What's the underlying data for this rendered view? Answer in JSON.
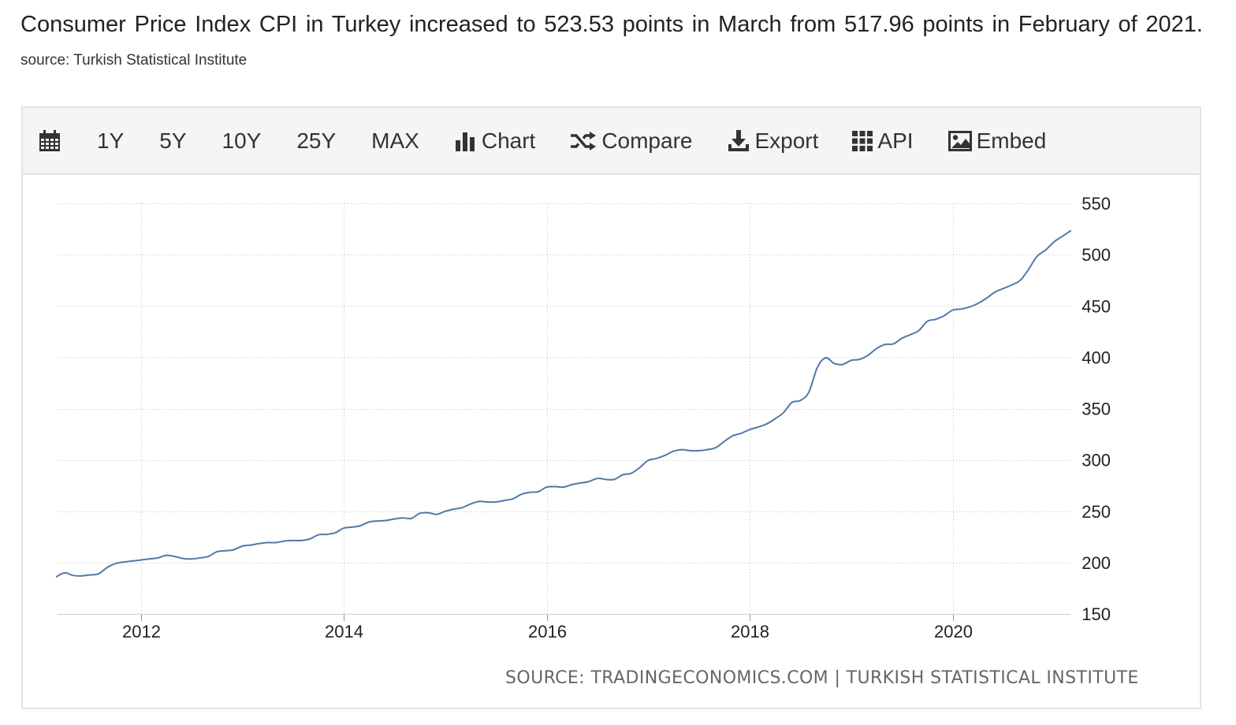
{
  "headline": {
    "text": "Consumer Price Index CPI in Turkey increased to 523.53 points in March from 517.96 points in February of 2021.",
    "source": "source: Turkish Statistical Institute"
  },
  "toolbar": {
    "range_1y": "1Y",
    "range_5y": "5Y",
    "range_10y": "10Y",
    "range_25y": "25Y",
    "range_max": "MAX",
    "chart_label": "Chart",
    "compare_label": "Compare",
    "export_label": "Export",
    "api_label": "API",
    "embed_label": "Embed",
    "icons": [
      "calendar-icon",
      "bar-chart-icon",
      "shuffle-icon",
      "download-icon",
      "grid-icon",
      "image-icon"
    ]
  },
  "footer_source": "SOURCE: TRADINGECONOMICS.COM | TURKISH STATISTICAL INSTITUTE",
  "colors": {
    "line": "#4f7aa8",
    "grid": "#d0d0d0"
  },
  "chart_data": {
    "type": "line",
    "title": "",
    "xlabel": "",
    "ylabel": "",
    "x_ticks": [
      "2012",
      "2014",
      "2016",
      "2018",
      "2020"
    ],
    "y_ticks": [
      150,
      200,
      250,
      300,
      350,
      400,
      450,
      500,
      550
    ],
    "ylim": [
      150,
      550
    ],
    "xlim": [
      "2011-03",
      "2021-03"
    ],
    "y_axis_side": "right",
    "grid": true,
    "series": [
      {
        "x": [
          "2011-03",
          "2011-04",
          "2011-05",
          "2011-06",
          "2011-07",
          "2011-08",
          "2011-09",
          "2011-10",
          "2011-11",
          "2011-12",
          "2012-01",
          "2012-02",
          "2012-03",
          "2012-04",
          "2012-05",
          "2012-06",
          "2012-07",
          "2012-08",
          "2012-09",
          "2012-10",
          "2012-11",
          "2012-12",
          "2013-01",
          "2013-02",
          "2013-03",
          "2013-04",
          "2013-05",
          "2013-06",
          "2013-07",
          "2013-08",
          "2013-09",
          "2013-10",
          "2013-11",
          "2013-12",
          "2014-01",
          "2014-02",
          "2014-03",
          "2014-04",
          "2014-05",
          "2014-06",
          "2014-07",
          "2014-08",
          "2014-09",
          "2014-10",
          "2014-11",
          "2014-12",
          "2015-01",
          "2015-02",
          "2015-03",
          "2015-04",
          "2015-05",
          "2015-06",
          "2015-07",
          "2015-08",
          "2015-09",
          "2015-10",
          "2015-11",
          "2015-12",
          "2016-01",
          "2016-02",
          "2016-03",
          "2016-04",
          "2016-05",
          "2016-06",
          "2016-07",
          "2016-08",
          "2016-09",
          "2016-10",
          "2016-11",
          "2016-12",
          "2017-01",
          "2017-02",
          "2017-03",
          "2017-04",
          "2017-05",
          "2017-06",
          "2017-07",
          "2017-08",
          "2017-09",
          "2017-10",
          "2017-11",
          "2017-12",
          "2018-01",
          "2018-02",
          "2018-03",
          "2018-04",
          "2018-05",
          "2018-06",
          "2018-07",
          "2018-08",
          "2018-09",
          "2018-10",
          "2018-11",
          "2018-12",
          "2019-01",
          "2019-02",
          "2019-03",
          "2019-04",
          "2019-05",
          "2019-06",
          "2019-07",
          "2019-08",
          "2019-09",
          "2019-10",
          "2019-11",
          "2019-12",
          "2020-01",
          "2020-02",
          "2020-03",
          "2020-04",
          "2020-05",
          "2020-06",
          "2020-07",
          "2020-08",
          "2020-09",
          "2020-10",
          "2020-11",
          "2020-12",
          "2021-01",
          "2021-02",
          "2021-03"
        ],
        "values": [
          186.0,
          190.0,
          187.5,
          187.0,
          188.0,
          189.0,
          195.0,
          199.0,
          200.5,
          201.5,
          202.5,
          203.5,
          204.5,
          207.0,
          206.0,
          204.0,
          203.5,
          204.5,
          206.0,
          210.5,
          211.5,
          212.5,
          216.0,
          217.0,
          218.5,
          219.5,
          219.5,
          221.0,
          221.5,
          221.5,
          223.0,
          227.0,
          227.5,
          229.0,
          233.5,
          234.5,
          236.0,
          239.5,
          240.5,
          241.0,
          242.5,
          243.5,
          243.0,
          248.0,
          248.5,
          247.0,
          250.0,
          252.0,
          253.5,
          257.0,
          259.5,
          259.0,
          259.0,
          260.5,
          262.0,
          266.5,
          268.5,
          269.0,
          273.5,
          274.0,
          273.5,
          276.0,
          277.5,
          279.0,
          282.0,
          281.0,
          281.0,
          285.5,
          287.0,
          292.5,
          299.5,
          301.5,
          304.5,
          308.5,
          310.0,
          309.0,
          309.0,
          310.0,
          312.0,
          318.0,
          323.5,
          326.0,
          329.5,
          332.0,
          335.0,
          340.0,
          346.0,
          356.0,
          358.0,
          366.0,
          390.0,
          399.5,
          394.0,
          393.0,
          397.0,
          398.0,
          402.0,
          408.5,
          412.5,
          413.0,
          418.5,
          422.0,
          426.0,
          435.0,
          437.0,
          440.5,
          446.0,
          447.0,
          449.0,
          452.5,
          457.5,
          463.5,
          467.0,
          470.5,
          475.0,
          486.0,
          498.5,
          504.5,
          512.5,
          517.96,
          523.53
        ]
      }
    ]
  }
}
